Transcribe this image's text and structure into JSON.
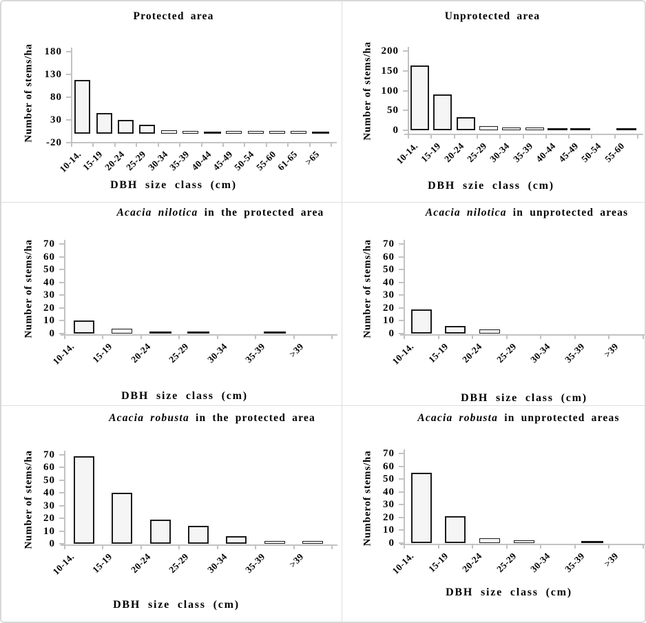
{
  "figure": {
    "description_colors": {
      "bar_fill": "#f5f5f5",
      "bar_outline": "#1a1a1a",
      "axis_color": "#c2c2c2",
      "text_color": "#000000",
      "divider_color": "#dedede"
    }
  },
  "chart_data": [
    {
      "id": "protected-area",
      "type": "bar",
      "title_italic": "",
      "title": "Protected area",
      "y_axis_title": "Number of stems/ha",
      "x_axis_title": "DBH size class (cm)",
      "y_ticks": [
        180,
        130,
        80,
        30,
        -20
      ],
      "ylim": [
        -20,
        180
      ],
      "grid": false,
      "categories": [
        "10-14.",
        "15-19",
        "20-24",
        "25-29",
        "30-34",
        "35-39",
        "40-44",
        "45-49",
        "50-54",
        "55-60",
        "61-65",
        ">65"
      ],
      "values": [
        118,
        45,
        31,
        20,
        8,
        4,
        1,
        2,
        2,
        2,
        2,
        1
      ],
      "solid_black_indexes": [
        6,
        11
      ]
    },
    {
      "id": "unprotected-area",
      "type": "bar",
      "title_italic": "",
      "title": "Unprotected area",
      "y_axis_title": "Number of stems/ha",
      "x_axis_title": "DBH szie class (cm)",
      "y_ticks": [
        200,
        150,
        100,
        50,
        0
      ],
      "ylim": [
        0,
        200
      ],
      "grid": false,
      "categories": [
        "10-14.",
        "15-19",
        "20-24",
        "25-29",
        "30-34",
        "35-39",
        "40-44",
        "45-49",
        "50-54",
        "55-60"
      ],
      "values": [
        163,
        90,
        33,
        10,
        6,
        6,
        2,
        2,
        0,
        2
      ],
      "solid_black_indexes": [
        6,
        7,
        9
      ]
    },
    {
      "id": "acacia-nilotica-protected",
      "type": "bar",
      "title_italic": "Acacia nilotica",
      "title": " in the protected area",
      "y_axis_title": "Number of stems/ha",
      "x_axis_title": "DBH size class (cm)",
      "y_ticks": [
        70,
        60,
        50,
        40,
        30,
        20,
        10,
        0
      ],
      "ylim": [
        0,
        70
      ],
      "grid": false,
      "categories": [
        "10-14.",
        "15-19",
        "20-24",
        "25-29",
        "30-34",
        "35-39",
        ">39"
      ],
      "values": [
        10,
        4,
        1,
        1,
        0,
        1,
        0
      ],
      "solid_black_indexes": [
        2,
        3,
        5
      ]
    },
    {
      "id": "acacia-nilotica-unprotected",
      "type": "bar",
      "title_italic": "Acacia nilotica",
      "title": " in unprotected areas",
      "y_axis_title": "Number of stems/ha",
      "x_axis_title": "DBH size class (cm)",
      "y_ticks": [
        70,
        60,
        50,
        40,
        30,
        20,
        10,
        0
      ],
      "ylim": [
        0,
        70
      ],
      "grid": false,
      "categories": [
        "10-14.",
        "15-19",
        "20-24",
        "25-29",
        "30-34",
        "35-39",
        ">39"
      ],
      "values": [
        19,
        6,
        3,
        0,
        0,
        0,
        0
      ],
      "solid_black_indexes": []
    },
    {
      "id": "acacia-robusta-protected",
      "type": "bar",
      "title_italic": "Acacia robusta",
      "title": " in the protected area",
      "y_axis_title": "Number of stems/ha",
      "x_axis_title": "DBH size class (cm)",
      "y_ticks": [
        70,
        60,
        50,
        40,
        30,
        20,
        10,
        0
      ],
      "ylim": [
        0,
        70
      ],
      "grid": false,
      "categories": [
        "10-14.",
        "15-19",
        "20-24",
        "25-29",
        "30-34",
        "35-39",
        ">39"
      ],
      "values": [
        69,
        40,
        19,
        14,
        6,
        2,
        2
      ],
      "solid_black_indexes": []
    },
    {
      "id": "acacia-robusta-unprotected",
      "type": "bar",
      "title_italic": "Acacia robusta",
      "title": " in unprotected areas",
      "y_axis_title": "Numberof stems/ha",
      "x_axis_title": "DBH size class (cm)",
      "y_ticks": [
        70,
        60,
        50,
        40,
        30,
        20,
        10,
        0
      ],
      "ylim": [
        0,
        70
      ],
      "grid": false,
      "categories": [
        "10-14.",
        "15-19",
        "20-24",
        "25-29",
        "30-34",
        "35-39",
        ">39"
      ],
      "values": [
        55,
        21,
        4,
        2,
        0,
        1,
        0
      ],
      "solid_black_indexes": [
        5
      ]
    }
  ]
}
